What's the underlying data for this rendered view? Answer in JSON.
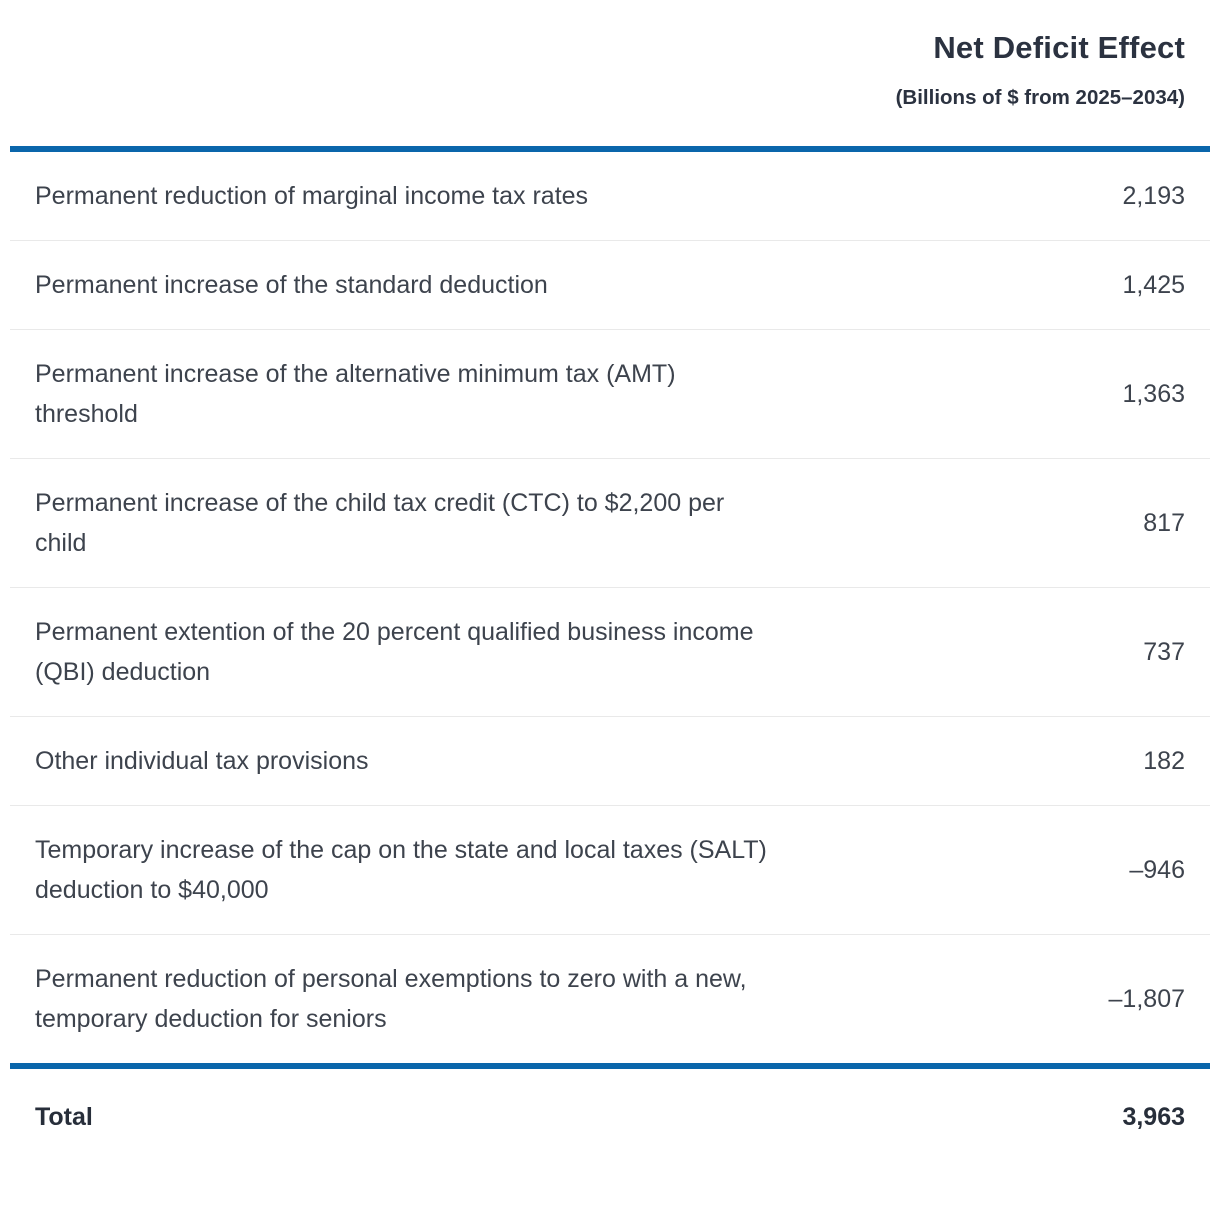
{
  "table": {
    "header": {
      "title": "Net Deficit Effect",
      "subtitle": "(Billions of $ from 2025–2034)"
    },
    "rows": [
      {
        "label": "Permanent reduction of marginal income tax rates",
        "value": "2,193"
      },
      {
        "label": "Permanent increase of the standard deduction",
        "value": "1,425"
      },
      {
        "label": "Permanent increase of the alternative minimum tax (AMT) threshold",
        "value": "1,363"
      },
      {
        "label": "Permanent increase of the child tax credit (CTC) to $2,200 per child",
        "value": "817"
      },
      {
        "label": "Permanent extention of the 20 percent qualified business income (QBI) deduction",
        "value": "737"
      },
      {
        "label": "Other individual tax provisions",
        "value": "182"
      },
      {
        "label": "Temporary increase of the cap on the state and local taxes (SALT) deduction to $40,000",
        "value": "–946"
      },
      {
        "label": "Permanent reduction of personal exemptions to zero with a new, temporary deduction for seniors",
        "value": "–1,807"
      }
    ],
    "total": {
      "label": "Total",
      "value": "3,963"
    },
    "colors": {
      "accent_blue": "#0a66ab",
      "divider": "#e9e9e9",
      "body_text": "#3d434d",
      "heading_text": "#2b3240"
    }
  }
}
